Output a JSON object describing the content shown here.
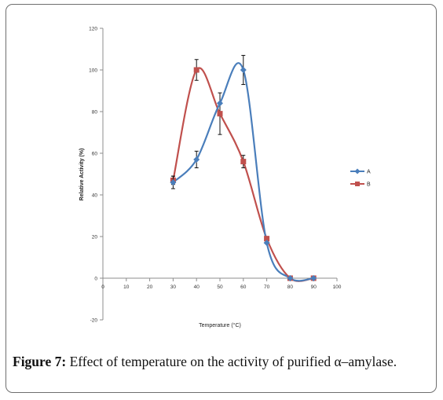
{
  "caption": {
    "label": "Figure 7:",
    "text": "Effect of temperature on the activity of purified α–amylase."
  },
  "chart_data": {
    "type": "line",
    "title": "",
    "xlabel": "Temperature (°C)",
    "ylabel": "Relative Activity (%)",
    "xlim": [
      0,
      100
    ],
    "ylim": [
      -20,
      120
    ],
    "x_ticks": [
      "0",
      "10",
      "20",
      "30",
      "40",
      "50",
      "60",
      "70",
      "80",
      "90",
      "100"
    ],
    "y_ticks": [
      "-20",
      "0",
      "20",
      "40",
      "60",
      "80",
      "100",
      "120"
    ],
    "legend_position": "right",
    "series": [
      {
        "name": "A",
        "color": "#4a7ebb",
        "marker": "diamond",
        "x": [
          30,
          40,
          50,
          60,
          70,
          80,
          90
        ],
        "y": [
          46,
          57,
          84,
          100,
          17,
          0,
          0
        ],
        "error": [
          3,
          4,
          0,
          7,
          0,
          0,
          0
        ]
      },
      {
        "name": "B",
        "color": "#c0504d",
        "marker": "square",
        "x": [
          30,
          40,
          50,
          60,
          70,
          80,
          90
        ],
        "y": [
          47,
          100,
          79,
          56,
          19,
          0,
          0
        ],
        "error": [
          2,
          5,
          10,
          3,
          0,
          0,
          0
        ]
      }
    ]
  }
}
